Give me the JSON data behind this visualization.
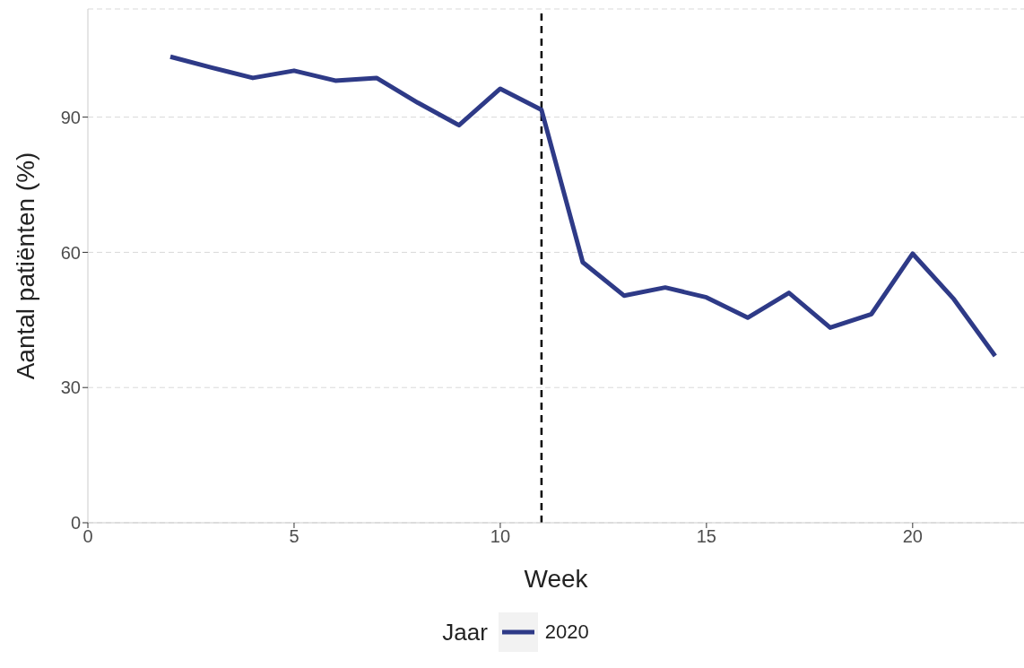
{
  "chart_data": {
    "type": "line",
    "xlabel": "Week",
    "ylabel": "Aantal patiënten (%)",
    "legend_title": "Jaar",
    "x": [
      2,
      3,
      4,
      5,
      6,
      7,
      8,
      9,
      10,
      11,
      12,
      13,
      14,
      15,
      16,
      17,
      18,
      19,
      20,
      21,
      22
    ],
    "series": [
      {
        "name": "2020",
        "color": "#2e3a87",
        "values": [
          103.4,
          101,
          98.7,
          100.3,
          98.1,
          98.7,
          93.2,
          88.2,
          96.3,
          91.6,
          57.8,
          50.4,
          52.2,
          50.0,
          45.5,
          51.0,
          43.3,
          46.3,
          59.7,
          49.6,
          37.0
        ]
      }
    ],
    "xlim": [
      0,
      22.7
    ],
    "xticks": [
      0,
      5,
      10,
      15,
      20
    ],
    "ylim": [
      0,
      114
    ],
    "yticks": [
      0,
      30,
      60,
      90
    ],
    "grid": "y",
    "legend": "bottom",
    "ref_lines": [
      {
        "axis": "x",
        "value": 11,
        "color": "#000000",
        "line_style": "dashed"
      }
    ]
  }
}
